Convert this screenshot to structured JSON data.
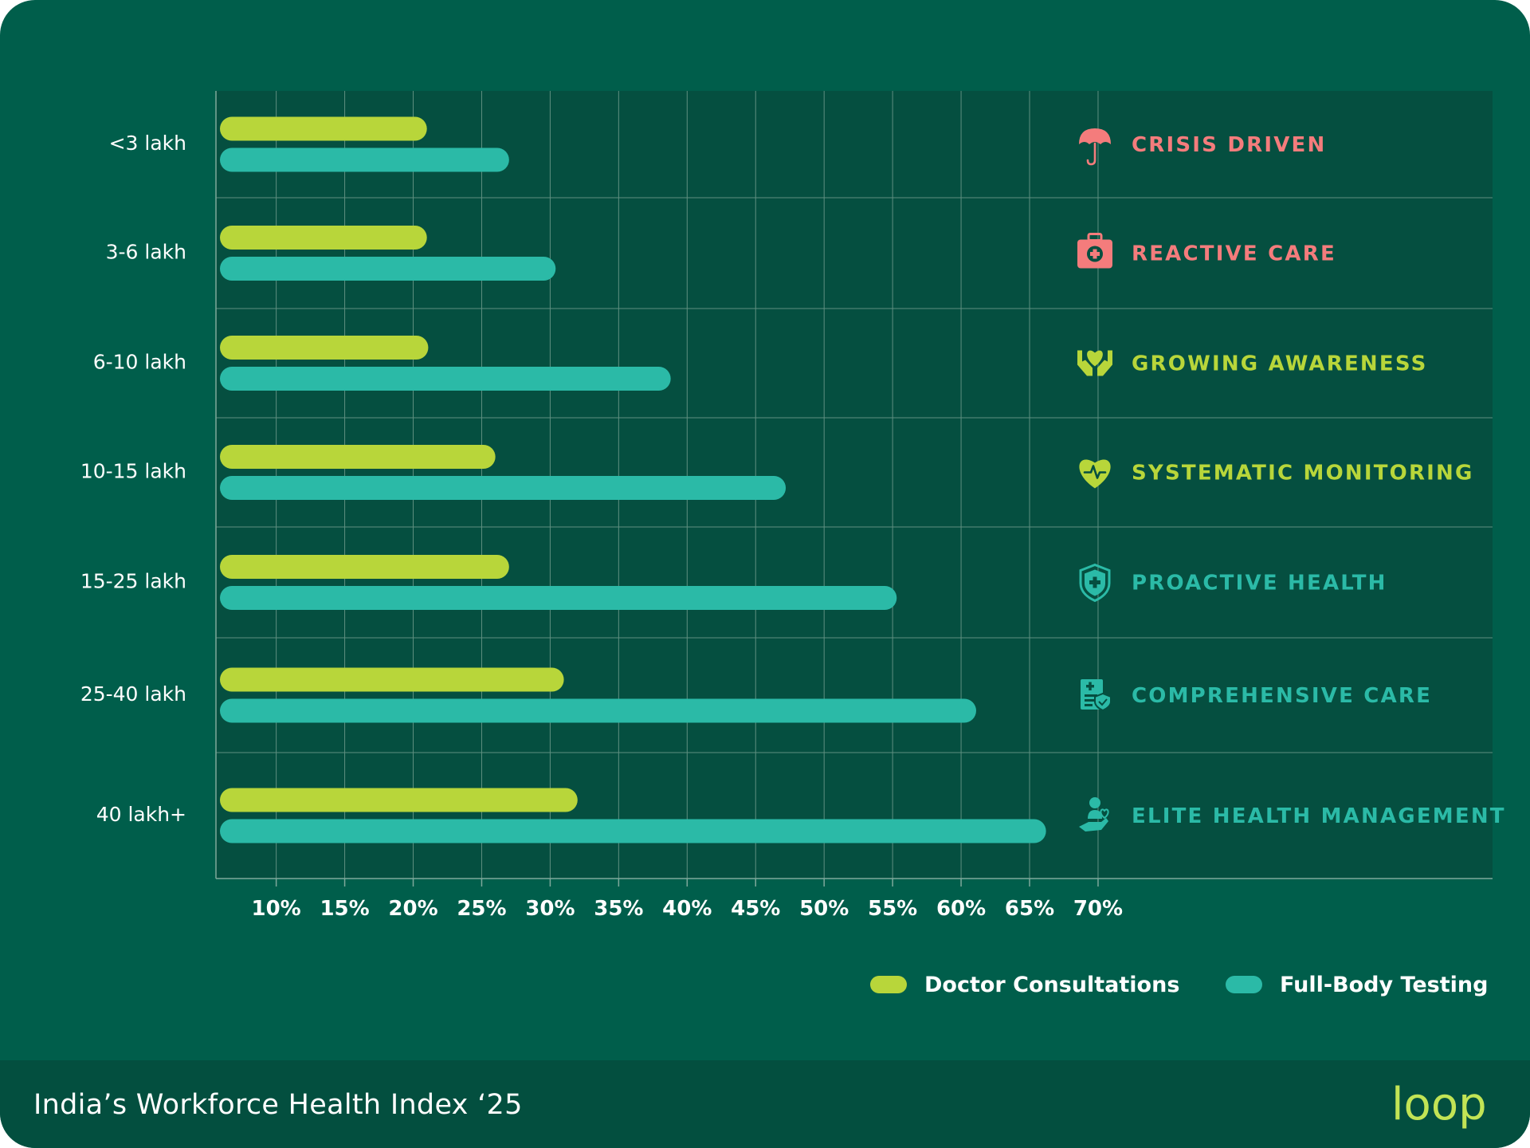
{
  "brand": {
    "footer_title": "India’s Workforce Health Index ‘25",
    "logo_text": "loop"
  },
  "colors": {
    "background": "#005e4b",
    "plot_background": "#054f40",
    "footer_background": "#034f3f",
    "doctor_consultations": "#b8d63a",
    "full_body_testing": "#2bbaa7",
    "stage_red": "#f47c7c",
    "stage_lime": "#b8d63a",
    "stage_teal": "#2bbaa7"
  },
  "chart_data": {
    "type": "bar",
    "orientation": "horizontal",
    "categories": [
      "<3 lakh",
      "3-6 lakh",
      "6-10 lakh",
      "10-15 lakh",
      "15-25 lakh",
      "25-40 lakh",
      "40 lakh+"
    ],
    "series": [
      {
        "name": "Doctor Consultations",
        "color": "#b8d63a",
        "values": [
          21,
          21,
          21.1,
          26,
          27,
          31,
          32
        ]
      },
      {
        "name": "Full-Body Testing",
        "color": "#2bbaa7",
        "values": [
          27,
          30.4,
          38.8,
          47.2,
          55.3,
          61.1,
          66.2
        ]
      }
    ],
    "x_ticks": [
      10,
      15,
      20,
      25,
      30,
      35,
      40,
      45,
      50,
      55,
      60,
      65,
      70
    ],
    "x_tick_labels": [
      "10%",
      "15%",
      "20%",
      "25%",
      "30%",
      "35%",
      "40%",
      "45%",
      "50%",
      "55%",
      "60%",
      "65%",
      "70%"
    ],
    "xlim": [
      5.6,
      98.8
    ],
    "grid": true,
    "legend_position": "bottom-right",
    "stages": [
      {
        "label": "CRISIS DRIVEN",
        "icon": "umbrella-icon",
        "color": "#f47c7c"
      },
      {
        "label": "REACTIVE CARE",
        "icon": "first-aid-kit-icon",
        "color": "#f47c7c"
      },
      {
        "label": "GROWING AWARENESS",
        "icon": "hands-heart-icon",
        "color": "#b8d63a"
      },
      {
        "label": "SYSTEMATIC MONITORING",
        "icon": "heart-pulse-icon",
        "color": "#b8d63a"
      },
      {
        "label": "PROACTIVE HEALTH",
        "icon": "shield-cross-icon",
        "color": "#2bbaa7"
      },
      {
        "label": "COMPREHENSIVE CARE",
        "icon": "medical-document-icon",
        "color": "#2bbaa7"
      },
      {
        "label": "ELITE HEALTH MANAGEMENT",
        "icon": "person-care-icon",
        "color": "#2bbaa7"
      }
    ]
  }
}
